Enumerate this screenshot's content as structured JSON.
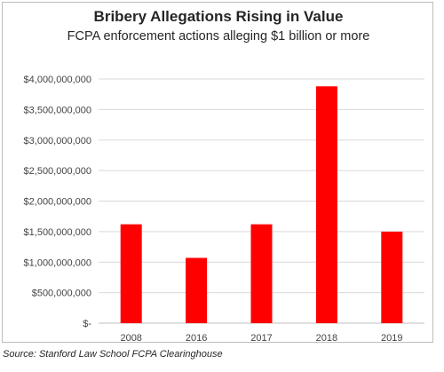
{
  "chart_data": {
    "type": "bar",
    "title": "Bribery Allegations Rising in Value",
    "subtitle": "FCPA enforcement actions alleging $1 billion or more",
    "categories": [
      "2008",
      "2016",
      "2017",
      "2018",
      "2019"
    ],
    "values": [
      1620000000,
      1070000000,
      1620000000,
      3880000000,
      1500000000
    ],
    "ylim": [
      0,
      4000000000
    ],
    "yticks": [
      0,
      500000000,
      1000000000,
      1500000000,
      2000000000,
      2500000000,
      3000000000,
      3500000000,
      4000000000
    ],
    "ytick_labels": [
      "$-",
      "$500,000,000",
      "$1,000,000,000",
      "$1,500,000,000",
      "$2,000,000,000",
      "$2,500,000,000",
      "$3,000,000,000",
      "$3,500,000,000",
      "$4,000,000,000"
    ],
    "xlabel": "",
    "ylabel": "",
    "grid": true,
    "bar_color": "#ff0000",
    "grid_color": "#d9d9d9"
  },
  "source": "Source: Stanford Law School FCPA Clearinghouse"
}
